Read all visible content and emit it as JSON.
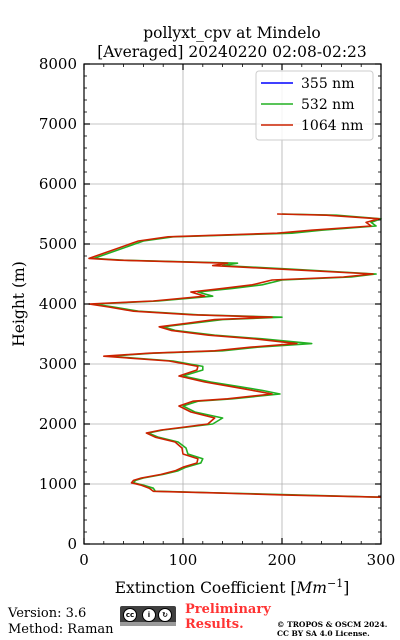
{
  "chart_data": {
    "type": "line",
    "title": "pollyxt_cpv at Mindelo",
    "subtitle": "[Averaged] 20240220 02:08-02:23",
    "xlabel": "Extinction Coefficient [Mm⁻¹]",
    "xlabel_text": "Extinction Coefficient [",
    "xlabel_unit": "Mm",
    "xlabel_exp": "−1",
    "xlabel_close": "]",
    "ylabel": "Height (m)",
    "xlim": [
      0,
      300
    ],
    "ylim": [
      0,
      8000
    ],
    "xticks": [
      0,
      100,
      200,
      300
    ],
    "yticks": [
      0,
      1000,
      2000,
      3000,
      4000,
      5000,
      6000,
      7000,
      8000
    ],
    "grid": true,
    "legend_position": "top-right",
    "series": [
      {
        "name": "355 nm",
        "color": "#0000ff",
        "points": []
      },
      {
        "name": "532 nm",
        "color": "#22b022",
        "points": [
          [
            300,
            780
          ],
          [
            210,
            820
          ],
          [
            140,
            850
          ],
          [
            72,
            880
          ],
          [
            70,
            930
          ],
          [
            60,
            980
          ],
          [
            50,
            1020
          ],
          [
            52,
            1060
          ],
          [
            60,
            1100
          ],
          [
            80,
            1160
          ],
          [
            95,
            1220
          ],
          [
            103,
            1280
          ],
          [
            118,
            1350
          ],
          [
            120,
            1420
          ],
          [
            105,
            1500
          ],
          [
            103,
            1600
          ],
          [
            95,
            1700
          ],
          [
            75,
            1780
          ],
          [
            65,
            1850
          ],
          [
            80,
            1900
          ],
          [
            105,
            1950
          ],
          [
            130,
            2000
          ],
          [
            140,
            2100
          ],
          [
            112,
            2200
          ],
          [
            100,
            2300
          ],
          [
            115,
            2380
          ],
          [
            150,
            2420
          ],
          [
            198,
            2500
          ],
          [
            180,
            2560
          ],
          [
            158,
            2620
          ],
          [
            128,
            2700
          ],
          [
            100,
            2800
          ],
          [
            120,
            2900
          ],
          [
            120,
            2960
          ],
          [
            90,
            3050
          ],
          [
            25,
            3130
          ],
          [
            70,
            3180
          ],
          [
            140,
            3220
          ],
          [
            175,
            3280
          ],
          [
            230,
            3340
          ],
          [
            180,
            3420
          ],
          [
            132,
            3480
          ],
          [
            92,
            3560
          ],
          [
            80,
            3620
          ],
          [
            110,
            3680
          ],
          [
            140,
            3740
          ],
          [
            200,
            3780
          ],
          [
            115,
            3820
          ],
          [
            55,
            3880
          ],
          [
            30,
            3950
          ],
          [
            10,
            4000
          ],
          [
            75,
            4050
          ],
          [
            130,
            4130
          ],
          [
            115,
            4200
          ],
          [
            150,
            4260
          ],
          [
            180,
            4320
          ],
          [
            200,
            4400
          ],
          [
            270,
            4450
          ],
          [
            295,
            4500
          ],
          [
            210,
            4580
          ],
          [
            140,
            4640
          ],
          [
            155,
            4680
          ],
          [
            40,
            4730
          ],
          [
            10,
            4760
          ],
          [
            60,
            5050
          ],
          [
            90,
            5120
          ],
          [
            210,
            5180
          ],
          [
            240,
            5230
          ],
          [
            295,
            5300
          ],
          [
            290,
            5360
          ],
          [
            300,
            5420
          ],
          [
            255,
            5480
          ],
          [
            200,
            5500
          ]
        ]
      },
      {
        "name": "1064 nm",
        "color": "#cc2200",
        "points": [
          [
            300,
            780
          ],
          [
            205,
            815
          ],
          [
            138,
            848
          ],
          [
            70,
            878
          ],
          [
            66,
            930
          ],
          [
            58,
            980
          ],
          [
            48,
            1020
          ],
          [
            50,
            1060
          ],
          [
            58,
            1100
          ],
          [
            78,
            1160
          ],
          [
            92,
            1220
          ],
          [
            100,
            1280
          ],
          [
            114,
            1350
          ],
          [
            115,
            1420
          ],
          [
            100,
            1500
          ],
          [
            99,
            1600
          ],
          [
            92,
            1700
          ],
          [
            72,
            1780
          ],
          [
            63,
            1850
          ],
          [
            78,
            1900
          ],
          [
            102,
            1950
          ],
          [
            125,
            2000
          ],
          [
            132,
            2100
          ],
          [
            108,
            2200
          ],
          [
            96,
            2300
          ],
          [
            110,
            2380
          ],
          [
            145,
            2420
          ],
          [
            190,
            2500
          ],
          [
            170,
            2560
          ],
          [
            150,
            2620
          ],
          [
            122,
            2700
          ],
          [
            96,
            2800
          ],
          [
            114,
            2900
          ],
          [
            115,
            2960
          ],
          [
            86,
            3050
          ],
          [
            20,
            3130
          ],
          [
            66,
            3180
          ],
          [
            132,
            3220
          ],
          [
            168,
            3280
          ],
          [
            215,
            3340
          ],
          [
            172,
            3420
          ],
          [
            126,
            3480
          ],
          [
            88,
            3560
          ],
          [
            76,
            3620
          ],
          [
            105,
            3680
          ],
          [
            132,
            3740
          ],
          [
            190,
            3780
          ],
          [
            110,
            3820
          ],
          [
            50,
            3880
          ],
          [
            25,
            3950
          ],
          [
            5,
            4000
          ],
          [
            70,
            4050
          ],
          [
            122,
            4130
          ],
          [
            108,
            4200
          ],
          [
            140,
            4260
          ],
          [
            170,
            4320
          ],
          [
            190,
            4400
          ],
          [
            262,
            4450
          ],
          [
            292,
            4500
          ],
          [
            200,
            4580
          ],
          [
            130,
            4640
          ],
          [
            145,
            4680
          ],
          [
            35,
            4730
          ],
          [
            5,
            4760
          ],
          [
            55,
            5050
          ],
          [
            85,
            5120
          ],
          [
            195,
            5180
          ],
          [
            230,
            5230
          ],
          [
            290,
            5300
          ],
          [
            285,
            5360
          ],
          [
            298,
            5420
          ],
          [
            245,
            5480
          ],
          [
            195,
            5500
          ]
        ]
      }
    ]
  },
  "footer": {
    "version": "Version: 3.6",
    "method": "Method: Raman",
    "cc_badge": "cc by sa",
    "preliminary_line1": "Preliminary",
    "preliminary_line2": "Results.",
    "copyright_line1": "© TROPOS & OSCM 2024.",
    "copyright_line2": "CC BY SA 4.0 License."
  }
}
